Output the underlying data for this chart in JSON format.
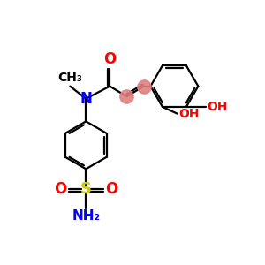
{
  "bg_color": "#ffffff",
  "bond_color": "#000000",
  "n_color": "#0000ff",
  "o_color": "#ff0000",
  "s_color": "#cccc00",
  "highlight_color": "#e08080",
  "font_size": 10,
  "small_font_size": 9,
  "figsize": [
    3.0,
    3.0
  ],
  "dpi": 100,
  "xlim": [
    0,
    9
  ],
  "ylim": [
    0,
    9
  ]
}
